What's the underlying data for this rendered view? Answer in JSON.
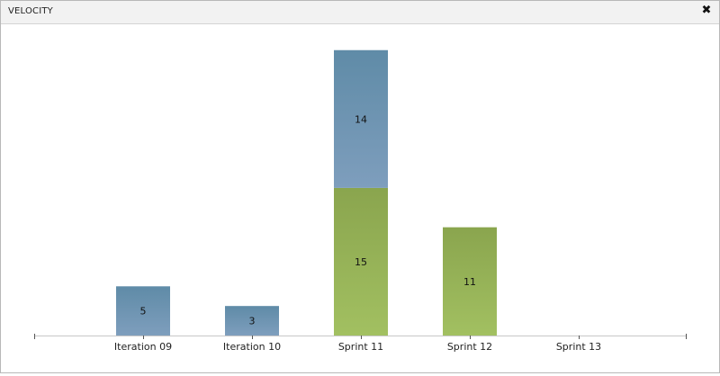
{
  "window": {
    "title": "VELOCITY",
    "close_icon": "close-icon"
  },
  "colors": {
    "blue_top": "#5f8ba7",
    "blue_bottom": "#7e9ebd",
    "green_top": "#8aa54e",
    "green_bottom": "#a2c061",
    "axis": "#555555",
    "label": "#222222"
  },
  "chart_data": {
    "type": "bar",
    "stacked": true,
    "categories": [
      "Iteration 09",
      "Iteration 10",
      "Sprint 11",
      "Sprint 12",
      "Sprint 13"
    ],
    "series": [
      {
        "color": "green",
        "values": [
          0,
          0,
          15,
          11,
          0
        ]
      },
      {
        "color": "blue",
        "values": [
          5,
          3,
          14,
          0,
          0
        ]
      }
    ],
    "ylim": [
      0,
      30
    ],
    "grid": false,
    "legend": "none",
    "title": "",
    "xlabel": "",
    "ylabel": ""
  }
}
